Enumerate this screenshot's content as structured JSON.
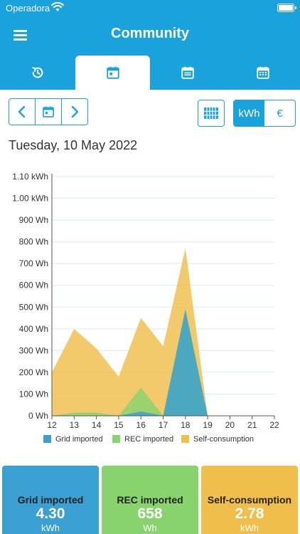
{
  "status_bar": {
    "carrier": "Operadora"
  },
  "header": {
    "title": "Community"
  },
  "tabs": [
    {
      "icon": "clock-refresh-icon",
      "active": false
    },
    {
      "icon": "calendar-day-icon",
      "active": true
    },
    {
      "icon": "calendar-list-icon",
      "active": false
    },
    {
      "icon": "calendar-month-icon",
      "active": false
    }
  ],
  "toolbar": {
    "prev_icon": "chevron-left-icon",
    "calendar_icon": "calendar-icon",
    "next_icon": "chevron-right-icon",
    "grid_icon": "grid-icon",
    "unit_kwh": "kWh",
    "unit_eur": "€",
    "active_unit": "kWh"
  },
  "date_label": "Tuesday, 10 May 2022",
  "colors": {
    "accent": "#1aa2dd",
    "grid_imported": "#3a9fd1",
    "rec_imported": "#88d36e",
    "self_consumption": "#f0be4a"
  },
  "chart_data": {
    "type": "area",
    "x": [
      12,
      13,
      14,
      15,
      16,
      17,
      18,
      19,
      20,
      21,
      22
    ],
    "xticks": [
      "12",
      "13",
      "14",
      "15",
      "16",
      "17",
      "18",
      "19",
      "20",
      "21",
      "22"
    ],
    "yticks": [
      "0 Wh",
      "100 Wh",
      "200 Wh",
      "300 Wh",
      "400 Wh",
      "500 Wh",
      "600 Wh",
      "700 Wh",
      "800 Wh",
      "900 Wh",
      "1.00 kWh",
      "1.10 kWh"
    ],
    "ylim": [
      0,
      1100
    ],
    "stacked": true,
    "grid": true,
    "legend_position": "bottom",
    "series": [
      {
        "name": "Grid imported",
        "color": "#3a9fd1",
        "values": [
          0,
          0,
          0,
          0,
          20,
          0,
          490,
          0,
          0,
          0,
          0
        ]
      },
      {
        "name": "REC imported",
        "color": "#88d36e",
        "values": [
          0,
          15,
          15,
          0,
          110,
          0,
          0,
          0,
          0,
          0,
          0
        ]
      },
      {
        "name": "Self-consumption",
        "color": "#f0be4a",
        "values": [
          200,
          385,
          295,
          180,
          320,
          320,
          280,
          0,
          0,
          0,
          0
        ]
      }
    ]
  },
  "cards": [
    {
      "label": "Grid imported",
      "value": "4.30",
      "unit": "kWh",
      "color": "#3a9fd1"
    },
    {
      "label": "REC imported",
      "value": "658",
      "unit": "Wh",
      "color": "#88d36e"
    },
    {
      "label": "Self-consumption",
      "value": "2.78",
      "unit": "kWh",
      "color": "#f0be4a"
    }
  ]
}
